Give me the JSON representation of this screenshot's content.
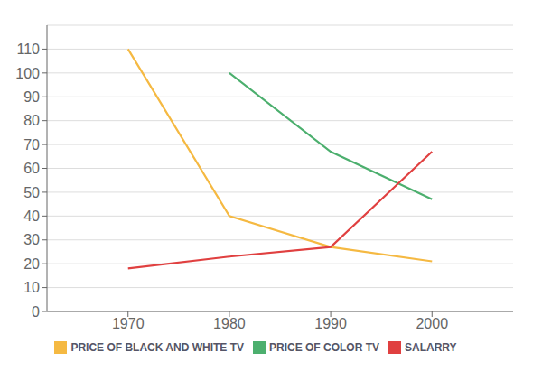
{
  "chart_data": {
    "type": "line",
    "x": [
      1970,
      1980,
      1990,
      2000
    ],
    "series": [
      {
        "name": "PRICE OF COLOR TV",
        "color": "#4caf6e",
        "values": [
          null,
          100,
          67,
          47
        ]
      },
      {
        "name": "PRICE OF BLACK AND WHITE TV",
        "color": "#f5b942",
        "values": [
          110,
          40,
          27,
          21
        ]
      },
      {
        "name": "SALARRY",
        "color": "#e04040",
        "values": [
          18,
          23,
          27,
          67
        ]
      }
    ],
    "xlim": [
      1962,
      2008
    ],
    "ylim": [
      0,
      120
    ],
    "xticks": [
      1970,
      1980,
      1990,
      2000
    ],
    "yticks": [
      0,
      10,
      20,
      30,
      40,
      50,
      60,
      70,
      80,
      90,
      100,
      110
    ],
    "grid": true,
    "legend": "bottom"
  }
}
